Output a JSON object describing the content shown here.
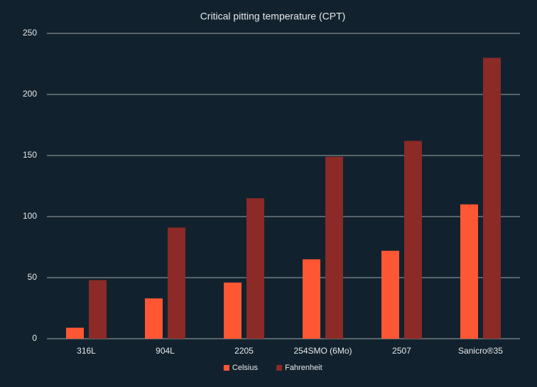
{
  "chart_data": {
    "type": "bar",
    "title": "Critical pitting temperature (CPT)",
    "categories": [
      "316L",
      "904L",
      "2205",
      "254SMO (6Mo)",
      "2507",
      "Sanicro®35"
    ],
    "series": [
      {
        "name": "Celsius",
        "color": "#ff5733",
        "values": [
          9,
          33,
          46,
          65,
          72,
          110
        ]
      },
      {
        "name": "Fahrenheit",
        "color": "#8b2a26",
        "values": [
          48,
          91,
          115,
          149,
          162,
          230
        ]
      }
    ],
    "ylim": [
      0,
      250
    ],
    "yticks": [
      0,
      50,
      100,
      150,
      200,
      250
    ],
    "grid": true,
    "legend": "bottom"
  }
}
